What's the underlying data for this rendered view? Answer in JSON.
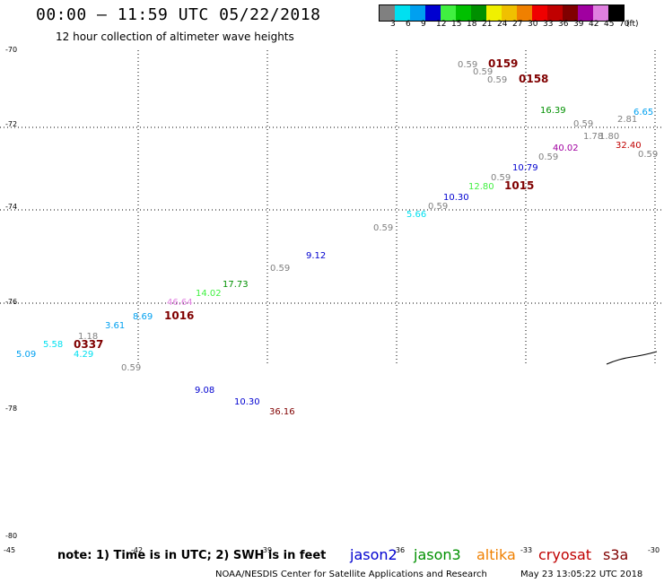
{
  "title": "00:00 – 11:59 UTC 05/22/2018",
  "subtitle": "12 hour collection of altimeter wave heights",
  "legend": {
    "unit": "(ft)",
    "bins": [
      {
        "label": "3",
        "color": "#808080"
      },
      {
        "label": "6",
        "color": "#00e0f0"
      },
      {
        "label": "9",
        "color": "#00a0f0"
      },
      {
        "label": "12",
        "color": "#0000d0"
      },
      {
        "label": "15",
        "color": "#40f040"
      },
      {
        "label": "18",
        "color": "#00c000"
      },
      {
        "label": "21",
        "color": "#009000"
      },
      {
        "label": "24",
        "color": "#f0f000"
      },
      {
        "label": "27",
        "color": "#f0c000"
      },
      {
        "label": "30",
        "color": "#f08000"
      },
      {
        "label": "33",
        "color": "#f00000"
      },
      {
        "label": "36",
        "color": "#c00000"
      },
      {
        "label": "39",
        "color": "#800000"
      },
      {
        "label": "42",
        "color": "#a000a0"
      },
      {
        "label": "45",
        "color": "#e080e0"
      },
      {
        "label": "70",
        "color": "#000000"
      }
    ]
  },
  "axes": {
    "lat_labels": [
      "-70",
      "-72",
      "-74",
      "-76",
      "-78",
      "-80"
    ],
    "lon_labels_bottom": [
      "-45",
      "-42",
      "-39",
      "-36",
      "-33",
      "-30"
    ]
  },
  "readings": [
    {
      "text": "0.59",
      "color": "#808080"
    },
    {
      "text": "0159",
      "color": "#800000",
      "bold": true
    },
    {
      "text": "0.59",
      "color": "#808080"
    },
    {
      "text": "0.59",
      "color": "#808080"
    },
    {
      "text": "0158",
      "color": "#800000",
      "bold": true
    },
    {
      "text": "16.39",
      "color": "#009000"
    },
    {
      "text": "6.65",
      "color": "#00a0f0"
    },
    {
      "text": "0.59",
      "color": "#808080"
    },
    {
      "text": "2.81",
      "color": "#808080"
    },
    {
      "text": "1.78",
      "color": "#808080"
    },
    {
      "text": "1.80",
      "color": "#808080"
    },
    {
      "text": "40.02",
      "color": "#a000a0"
    },
    {
      "text": "32.40",
      "color": "#c00000"
    },
    {
      "text": "0.59",
      "color": "#808080"
    },
    {
      "text": "0.59",
      "color": "#808080"
    },
    {
      "text": "10.79",
      "color": "#0000d0"
    },
    {
      "text": "0.59",
      "color": "#808080"
    },
    {
      "text": "12.80",
      "color": "#40f040"
    },
    {
      "text": "1015",
      "color": "#800000",
      "bold": true
    },
    {
      "text": "10.30",
      "color": "#0000d0"
    },
    {
      "text": "0.59",
      "color": "#808080"
    },
    {
      "text": "5.66",
      "color": "#00e0f0"
    },
    {
      "text": "0.59",
      "color": "#808080"
    },
    {
      "text": "9.12",
      "color": "#0000d0"
    },
    {
      "text": "0.59",
      "color": "#808080"
    },
    {
      "text": "17.73",
      "color": "#009000"
    },
    {
      "text": "14.02",
      "color": "#40f040"
    },
    {
      "text": "46.64",
      "color": "#e080e0"
    },
    {
      "text": "1016",
      "color": "#800000",
      "bold": true
    },
    {
      "text": "8.69",
      "color": "#00a0f0"
    },
    {
      "text": "3.61",
      "color": "#00a0f0"
    },
    {
      "text": "1.18",
      "color": "#808080"
    },
    {
      "text": "0337",
      "color": "#800000",
      "bold": true
    },
    {
      "text": "5.58",
      "color": "#00e0f0"
    },
    {
      "text": "5.09",
      "color": "#00a0f0"
    },
    {
      "text": "4.29",
      "color": "#00e0f0"
    },
    {
      "text": "0.59",
      "color": "#808080"
    },
    {
      "text": "9.08",
      "color": "#0000d0"
    },
    {
      "text": "10.30",
      "color": "#0000d0"
    },
    {
      "text": "36.16",
      "color": "#800000"
    }
  ],
  "footer": {
    "note": "note: 1) Time is in UTC; 2) SWH is in feet",
    "missions": [
      {
        "name": "jason2",
        "color": "#0000d0"
      },
      {
        "name": "jason3",
        "color": "#009000"
      },
      {
        "name": "altika",
        "color": "#f08000"
      },
      {
        "name": "cryosat",
        "color": "#c00000"
      },
      {
        "name": "s3a",
        "color": "#800000"
      }
    ],
    "credit": "NOAA/NESDIS Center for Satellite Applications and Research",
    "timestamp": "May 23 13:05:22 UTC 2018"
  }
}
